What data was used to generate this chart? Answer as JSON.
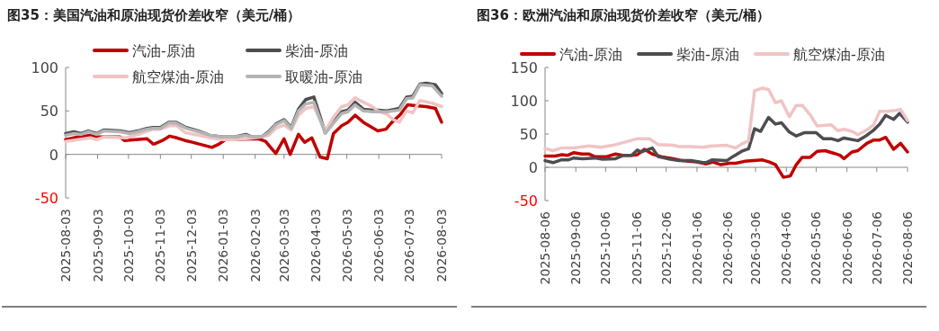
{
  "chart_data": [
    {
      "type": "line",
      "title": "图35：美国汽油和原油现货价差收窄（美元/桶）",
      "legend": "top",
      "xlim": [
        "2025-08-03",
        "2026-08-03"
      ],
      "xticks": [
        "2025-08-03",
        "2025-09-03",
        "2025-10-03",
        "2025-11-03",
        "2025-12-03",
        "2026-01-03",
        "2026-02-03",
        "2026-03-03",
        "2026-04-03",
        "2026-05-03",
        "2026-06-03",
        "2026-07-03",
        "2026-08-03"
      ],
      "ylim": [
        -50,
        100
      ],
      "yticks": [
        -50,
        0,
        50,
        100
      ],
      "series": [
        {
          "name": "汽油-原油",
          "color": "#c00000",
          "x": [
            "2025-08-03",
            "2025-08-15",
            "2025-08-27",
            "2025-09-02",
            "2025-09-09",
            "2025-09-25",
            "2025-09-29",
            "2025-10-21",
            "2025-10-27",
            "2025-10-28",
            "2025-11-05",
            "2025-11-12",
            "2025-11-19",
            "2025-11-27",
            "2025-12-04",
            "2025-12-23",
            "2025-12-30",
            "2026-01-05",
            "2026-02-06",
            "2026-02-13",
            "2026-02-23",
            "2026-03-03",
            "2026-03-09",
            "2026-03-17",
            "2026-03-23",
            "2026-03-30",
            "2026-04-07",
            "2026-04-14",
            "2026-04-20",
            "2026-04-28",
            "2026-05-04",
            "2026-05-11",
            "2026-05-19",
            "2026-05-26",
            "2026-06-02",
            "2026-06-10",
            "2026-06-15",
            "2026-06-24",
            "2026-07-01",
            "2026-07-09",
            "2026-07-19",
            "2026-07-28",
            "2026-08-03"
          ],
          "values": [
            17,
            20,
            22,
            20,
            20,
            20,
            16,
            18,
            12,
            12,
            16,
            21,
            19,
            16,
            14,
            8,
            12,
            17,
            18,
            15,
            1,
            18,
            0,
            23,
            14,
            19,
            -3,
            -5,
            24,
            33,
            37,
            45,
            37,
            32,
            27,
            29,
            36,
            46,
            57,
            56,
            55,
            53,
            37
          ]
        },
        {
          "name": "柴油-原油",
          "color": "#4d4d50",
          "x": [
            "2025-08-03",
            "2025-08-11",
            "2025-08-18",
            "2025-08-25",
            "2025-09-02",
            "2025-09-09",
            "2025-09-25",
            "2025-10-04",
            "2025-10-12",
            "2025-10-21",
            "2025-10-27",
            "2025-11-03",
            "2025-11-11",
            "2025-11-18",
            "2025-11-28",
            "2025-12-10",
            "2025-12-21",
            "2026-01-02",
            "2026-01-14",
            "2026-01-25",
            "2026-01-31",
            "2026-02-09",
            "2026-02-16",
            "2026-02-23",
            "2026-03-03",
            "2026-03-10",
            "2026-03-17",
            "2026-03-24",
            "2026-04-01",
            "2026-04-12",
            "2026-04-20",
            "2026-04-28",
            "2026-05-04",
            "2026-05-11",
            "2026-05-19",
            "2026-05-28",
            "2026-06-02",
            "2026-06-11",
            "2026-06-23",
            "2026-06-30",
            "2026-07-06",
            "2026-07-13",
            "2026-07-19",
            "2026-07-28",
            "2026-08-03"
          ],
          "values": [
            24,
            26,
            24,
            27,
            24,
            28,
            27,
            25,
            27,
            30,
            31,
            31,
            37,
            37,
            31,
            27,
            22,
            20,
            20,
            23,
            20,
            20,
            26,
            35,
            40,
            31,
            52,
            63,
            66,
            25,
            37,
            49,
            51,
            60,
            52,
            51,
            51,
            50,
            53,
            66,
            67,
            81,
            82,
            80,
            70
          ]
        },
        {
          "name": "航空煤油-原油",
          "color": "#f0c4c4",
          "x": [
            "2025-08-03",
            "2025-08-15",
            "2025-08-27",
            "2025-09-02",
            "2025-09-09",
            "2025-10-01",
            "2025-10-15",
            "2025-10-27",
            "2025-11-03",
            "2025-11-12",
            "2025-11-19",
            "2025-11-27",
            "2025-12-10",
            "2025-12-21",
            "2026-01-02",
            "2026-01-14",
            "2026-01-25",
            "2026-02-09",
            "2026-02-16",
            "2026-02-23",
            "2026-03-03",
            "2026-03-10",
            "2026-03-17",
            "2026-03-24",
            "2026-04-01",
            "2026-04-12",
            "2026-04-20",
            "2026-04-28",
            "2026-05-04",
            "2026-05-11",
            "2026-05-19",
            "2026-05-28",
            "2026-06-02",
            "2026-06-11",
            "2026-06-17",
            "2026-06-23",
            "2026-06-30",
            "2026-07-06",
            "2026-07-13",
            "2026-07-25",
            "2026-08-03"
          ],
          "values": [
            15,
            17,
            19,
            17,
            20,
            19,
            24,
            29,
            29,
            33,
            33,
            25,
            22,
            19,
            17,
            17,
            18,
            20,
            22,
            30,
            34,
            28,
            45,
            53,
            55,
            27,
            43,
            55,
            57,
            65,
            60,
            55,
            50,
            46,
            40,
            37,
            50,
            48,
            62,
            59,
            55
          ]
        },
        {
          "name": "取暖油-原油",
          "color": "#b4b4b4",
          "x": [
            "2025-08-03",
            "2025-08-11",
            "2025-08-18",
            "2025-08-25",
            "2025-09-02",
            "2025-09-09",
            "2025-09-25",
            "2025-10-04",
            "2025-10-12",
            "2025-10-21",
            "2025-10-27",
            "2025-11-03",
            "2025-11-11",
            "2025-11-18",
            "2025-11-28",
            "2025-12-10",
            "2025-12-21",
            "2026-01-02",
            "2026-01-14",
            "2026-01-25",
            "2026-01-31",
            "2026-02-09",
            "2026-02-16",
            "2026-02-23",
            "2026-03-03",
            "2026-03-10",
            "2026-03-17",
            "2026-03-24",
            "2026-04-01",
            "2026-04-12",
            "2026-04-20",
            "2026-04-28",
            "2026-05-04",
            "2026-05-11",
            "2026-05-19",
            "2026-05-28",
            "2026-06-02",
            "2026-06-11",
            "2026-06-23",
            "2026-06-30",
            "2026-07-06",
            "2026-07-13",
            "2026-07-25",
            "2026-08-03"
          ],
          "values": [
            22,
            24,
            23,
            26,
            23,
            27,
            26,
            24,
            26,
            29,
            30,
            30,
            36,
            36,
            30,
            26,
            22,
            20,
            20,
            22,
            20,
            20,
            25,
            34,
            39,
            30,
            50,
            58,
            60,
            24,
            36,
            47,
            49,
            57,
            50,
            49,
            49,
            49,
            51,
            64,
            65,
            80,
            79,
            67
          ]
        }
      ]
    },
    {
      "type": "line",
      "title": "图36：欧洲汽油和原油现货价差收窄（美元/桶）",
      "legend": "top",
      "xlim": [
        "2025-08-06",
        "2026-08-06"
      ],
      "xticks": [
        "2025-08-06",
        "2025-09-06",
        "2025-10-06",
        "2025-11-06",
        "2025-12-06",
        "2026-01-06",
        "2026-02-06",
        "2026-03-06",
        "2026-04-06",
        "2026-05-06",
        "2026-06-06",
        "2026-07-06",
        "2026-08-06"
      ],
      "ylim": [
        -50,
        150
      ],
      "yticks": [
        -50,
        0,
        50,
        100,
        150
      ],
      "series": [
        {
          "name": "汽油-原油",
          "color": "#c00000",
          "x": [
            "2025-08-06",
            "2025-08-16",
            "2025-08-23",
            "2025-08-29",
            "2025-09-04",
            "2025-09-12",
            "2025-09-19",
            "2025-09-25",
            "2025-10-07",
            "2025-10-16",
            "2025-10-23",
            "2025-11-01",
            "2025-11-07",
            "2025-11-14",
            "2025-11-22",
            "2025-12-01",
            "2025-12-13",
            "2025-12-22",
            "2026-01-06",
            "2026-01-15",
            "2026-01-22",
            "2026-01-30",
            "2026-02-08",
            "2026-02-14",
            "2026-02-23",
            "2026-03-04",
            "2026-03-13",
            "2026-03-20",
            "2026-03-26",
            "2026-04-03",
            "2026-04-10",
            "2026-04-16",
            "2026-04-22",
            "2026-04-30",
            "2026-05-07",
            "2026-05-15",
            "2026-05-24",
            "2026-05-30",
            "2026-06-03",
            "2026-06-11",
            "2026-06-17",
            "2026-06-26",
            "2026-07-03",
            "2026-07-09",
            "2026-07-15",
            "2026-07-23",
            "2026-07-30",
            "2026-08-06"
          ],
          "values": [
            17,
            17,
            19,
            18,
            22,
            20,
            20,
            16,
            16,
            20,
            18,
            18,
            19,
            27,
            20,
            16,
            13,
            10,
            8,
            5,
            8,
            4,
            6,
            6,
            9,
            10,
            11,
            8,
            4,
            -15,
            -13,
            4,
            15,
            15,
            24,
            25,
            21,
            18,
            13,
            23,
            25,
            36,
            41,
            41,
            45,
            27,
            36,
            23
          ]
        },
        {
          "name": "柴油-原油",
          "color": "#4d4d50",
          "x": [
            "2025-08-06",
            "2025-08-14",
            "2025-08-22",
            "2025-08-29",
            "2025-09-04",
            "2025-09-13",
            "2025-09-25",
            "2025-10-03",
            "2025-10-16",
            "2025-10-24",
            "2025-11-01",
            "2025-11-07",
            "2025-11-11",
            "2025-11-22",
            "2025-11-28",
            "2025-12-10",
            "2025-12-19",
            "2025-12-31",
            "2026-01-12",
            "2026-01-15",
            "2026-01-21",
            "2026-02-05",
            "2026-02-11",
            "2026-02-20",
            "2026-02-27",
            "2026-03-05",
            "2026-03-11",
            "2026-03-19",
            "2026-03-26",
            "2026-04-01",
            "2026-04-09",
            "2026-04-16",
            "2026-04-24",
            "2026-05-06",
            "2026-05-13",
            "2026-05-21",
            "2026-05-28",
            "2026-06-03",
            "2026-06-17",
            "2026-06-26",
            "2026-07-03",
            "2026-07-09",
            "2026-07-15",
            "2026-07-23",
            "2026-07-29",
            "2026-08-06"
          ],
          "values": [
            10,
            7,
            11,
            11,
            14,
            13,
            14,
            12,
            13,
            18,
            18,
            26,
            23,
            29,
            16,
            12,
            10,
            10,
            7,
            7,
            11,
            10,
            16,
            24,
            28,
            58,
            54,
            75,
            65,
            67,
            53,
            47,
            52,
            52,
            43,
            43,
            40,
            44,
            40,
            48,
            56,
            65,
            78,
            72,
            81,
            68
          ]
        },
        {
          "name": "航空煤油-原油",
          "color": "#f0c4c4",
          "x": [
            "2025-08-06",
            "2025-08-14",
            "2025-08-22",
            "2025-09-04",
            "2025-09-19",
            "2025-10-01",
            "2025-10-13",
            "2025-10-26",
            "2025-11-07",
            "2025-11-19",
            "2025-11-28",
            "2025-12-13",
            "2025-12-19",
            "2025-12-31",
            "2026-01-12",
            "2026-01-21",
            "2026-02-05",
            "2026-02-14",
            "2026-02-20",
            "2026-02-27",
            "2026-03-05",
            "2026-03-13",
            "2026-03-19",
            "2026-03-26",
            "2026-04-01",
            "2026-04-09",
            "2026-04-16",
            "2026-04-22",
            "2026-04-30",
            "2026-05-07",
            "2026-05-21",
            "2026-05-28",
            "2026-06-03",
            "2026-06-11",
            "2026-06-17",
            "2026-06-26",
            "2026-07-03",
            "2026-07-09",
            "2026-07-17",
            "2026-07-23",
            "2026-07-30",
            "2026-08-06"
          ],
          "values": [
            28,
            25,
            29,
            29,
            32,
            30,
            33,
            38,
            43,
            43,
            34,
            33,
            31,
            31,
            30,
            32,
            33,
            29,
            35,
            40,
            115,
            119,
            117,
            97,
            100,
            76,
            93,
            93,
            79,
            62,
            64,
            55,
            57,
            54,
            49,
            56,
            64,
            84,
            84,
            85,
            87,
            70
          ]
        }
      ]
    }
  ]
}
